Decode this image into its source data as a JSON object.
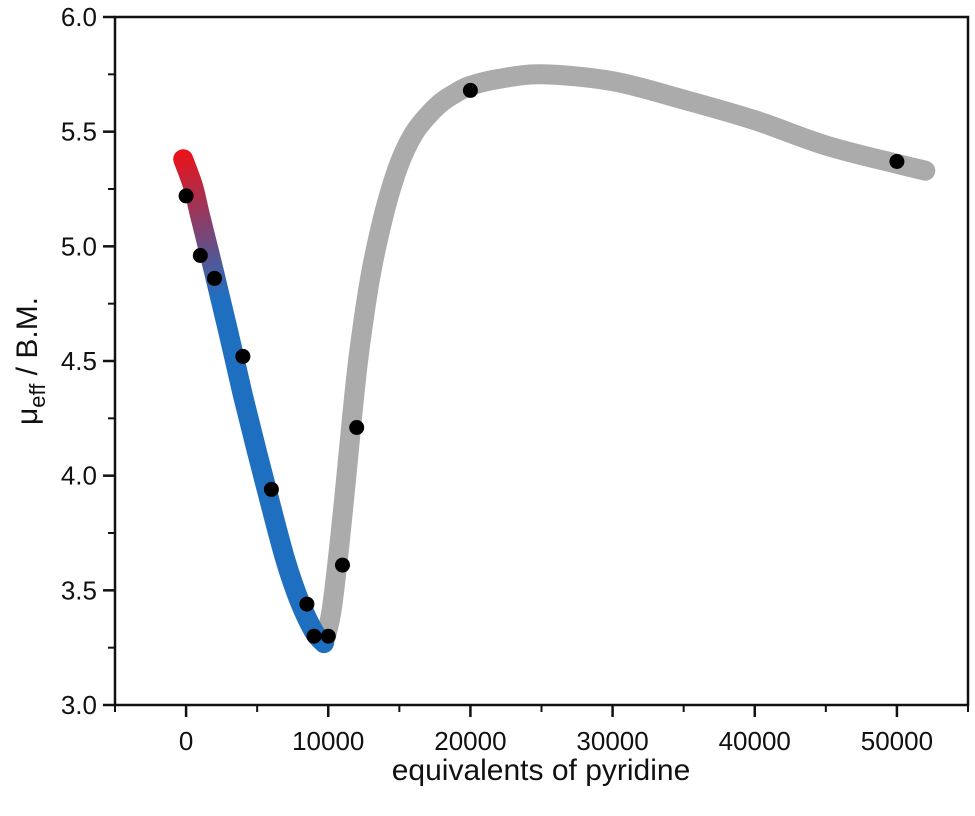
{
  "chart_data": {
    "type": "scatter",
    "xlabel": "equivalents of pyridine",
    "ylabel": "μ",
    "ylabel_sub": "eff",
    "ylabel_unit": " / B.M.",
    "xlim": [
      -5000,
      55000
    ],
    "ylim": [
      3.0,
      6.0
    ],
    "x_ticks": [
      0,
      10000,
      20000,
      30000,
      40000,
      50000
    ],
    "x_tick_labels": [
      "0",
      "10000",
      "20000",
      "30000",
      "40000",
      "50000"
    ],
    "y_ticks": [
      3.0,
      3.5,
      4.0,
      4.5,
      5.0,
      5.5,
      6.0
    ],
    "y_tick_labels": [
      "3.0",
      "3.5",
      "4.0",
      "4.5",
      "5.0",
      "5.5",
      "6.0"
    ],
    "grid": false,
    "points": [
      {
        "x": 0,
        "y": 5.22
      },
      {
        "x": 1000,
        "y": 4.96
      },
      {
        "x": 2000,
        "y": 4.86
      },
      {
        "x": 4000,
        "y": 4.52
      },
      {
        "x": 6000,
        "y": 3.94
      },
      {
        "x": 8500,
        "y": 3.44
      },
      {
        "x": 9000,
        "y": 3.3
      },
      {
        "x": 10000,
        "y": 3.3
      },
      {
        "x": 11000,
        "y": 3.61
      },
      {
        "x": 12000,
        "y": 4.21
      },
      {
        "x": 20000,
        "y": 5.68
      },
      {
        "x": 50000,
        "y": 5.37
      }
    ],
    "trend_descending": {
      "colors": [
        "#e8131b",
        "#1f6fc1"
      ],
      "x": [
        -200,
        500,
        1000,
        2000,
        3000,
        4000,
        5000,
        6000,
        7000,
        8000,
        9000,
        9700
      ],
      "y": [
        5.38,
        5.26,
        5.13,
        4.88,
        4.62,
        4.35,
        4.1,
        3.86,
        3.63,
        3.45,
        3.32,
        3.27
      ]
    },
    "trend_rising": {
      "color": "#a6a6a6",
      "x": [
        9700,
        10200,
        10700,
        11200,
        11700,
        12200,
        13000,
        14000,
        15000,
        16000,
        17000,
        18000,
        19000,
        20000,
        22000,
        25000,
        30000,
        35000,
        40000,
        45000,
        50000,
        52000
      ],
      "y": [
        3.27,
        3.4,
        3.65,
        3.95,
        4.27,
        4.55,
        4.88,
        5.16,
        5.36,
        5.49,
        5.57,
        5.63,
        5.67,
        5.7,
        5.73,
        5.75,
        5.72,
        5.64,
        5.55,
        5.44,
        5.36,
        5.33
      ]
    }
  }
}
